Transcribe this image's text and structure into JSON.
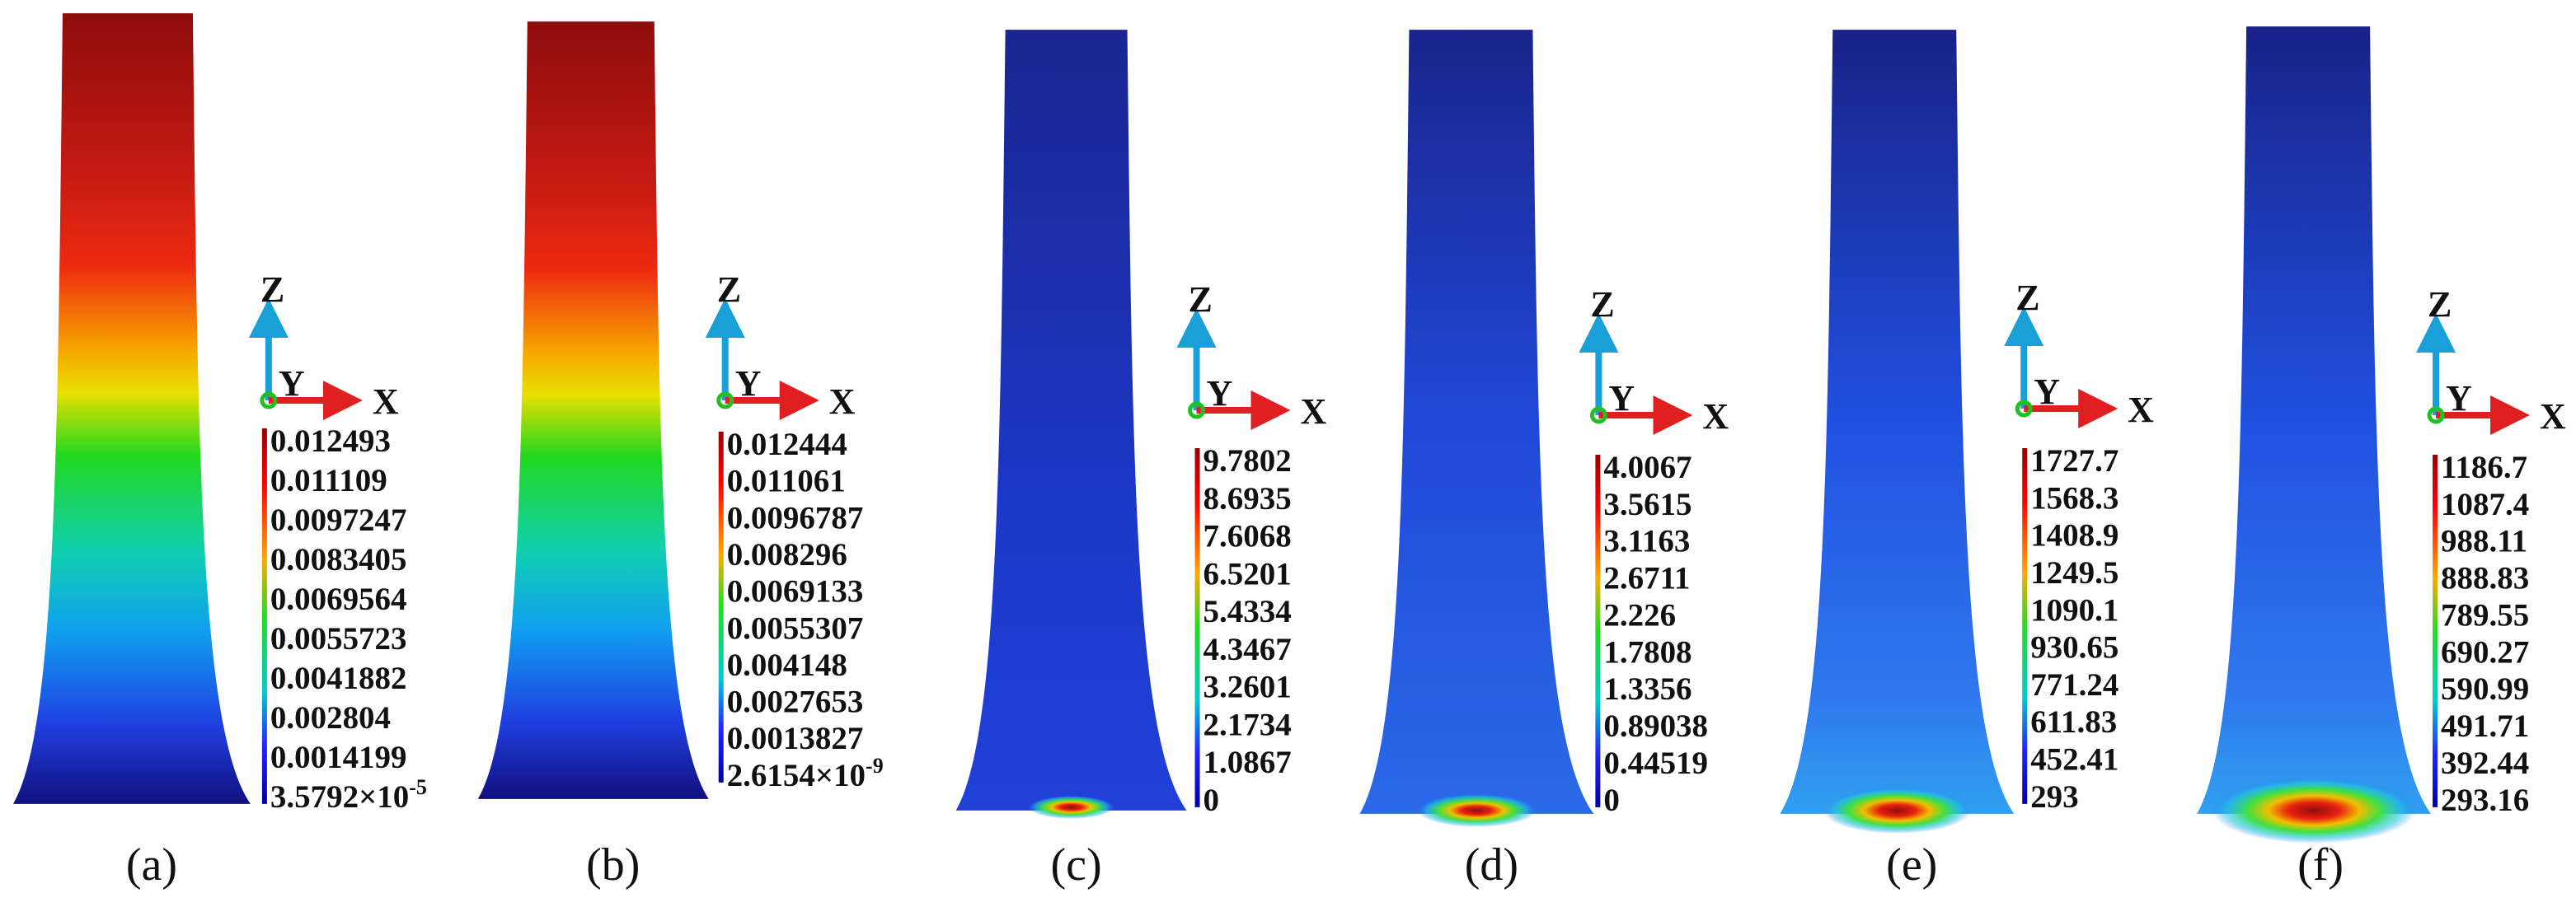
{
  "panels": [
    {
      "label": "(a)",
      "axes": {
        "z": "Z",
        "y": "Y",
        "x": "X"
      },
      "legend": [
        "0.012493",
        "0.011109",
        "0.0097247",
        "0.0083405",
        "0.0069564",
        "0.0055723",
        "0.0041882",
        "0.002804",
        "0.0014199",
        {
          "mantissa": "3.5792×10",
          "exponent": "-5"
        }
      ]
    },
    {
      "label": "(b)",
      "axes": {
        "z": "Z",
        "y": "Y",
        "x": "X"
      },
      "legend": [
        "0.012444",
        "0.011061",
        "0.0096787",
        "0.008296",
        "0.0069133",
        "0.0055307",
        "0.004148",
        "0.0027653",
        "0.0013827",
        {
          "mantissa": "2.6154×10",
          "exponent": "-9"
        }
      ]
    },
    {
      "label": "(c)",
      "axes": {
        "z": "Z",
        "y": "Y",
        "x": "X"
      },
      "legend": [
        "9.7802",
        "8.6935",
        "7.6068",
        "6.5201",
        "5.4334",
        "4.3467",
        "3.2601",
        "2.1734",
        "1.0867",
        "0"
      ]
    },
    {
      "label": "(d)",
      "axes": {
        "z": "Z",
        "y": "Y",
        "x": "X"
      },
      "legend": [
        "4.0067",
        "3.5615",
        "3.1163",
        "2.6711",
        "2.226",
        "1.7808",
        "1.3356",
        "0.89038",
        "0.44519",
        "0"
      ]
    },
    {
      "label": "(e)",
      "axes": {
        "z": "Z",
        "y": "Y",
        "x": "X"
      },
      "legend": [
        "1727.7",
        "1568.3",
        "1408.9",
        "1249.5",
        "1090.1",
        "930.65",
        "771.24",
        "611.83",
        "452.41",
        "293"
      ]
    },
    {
      "label": "(f)",
      "axes": {
        "z": "Z",
        "y": "Y",
        "x": "X"
      },
      "legend": [
        "1186.7",
        "1087.4",
        "988.11",
        "888.83",
        "789.55",
        "690.27",
        "590.99",
        "491.71",
        "392.44",
        "293.16"
      ]
    }
  ]
}
